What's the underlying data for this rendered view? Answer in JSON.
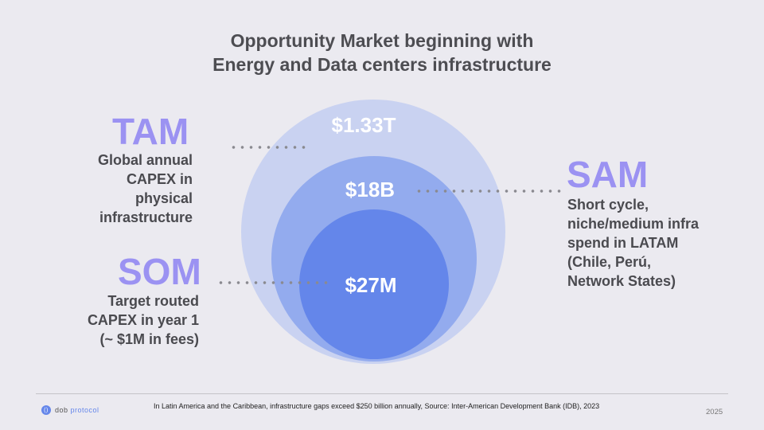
{
  "title": {
    "line1": "Opportunity Market beginning with",
    "line2": "Energy and Data centers infrastructure"
  },
  "circles": {
    "tam_value": "$1.33T",
    "sam_value": "$18B",
    "som_value": "$27M"
  },
  "tam": {
    "label": "TAM",
    "desc": [
      "Global annual",
      "CAPEX in",
      "physical",
      "infrastructure"
    ]
  },
  "sam": {
    "label": "SAM",
    "desc": [
      "Short cycle,",
      "niche/medium infra",
      "spend in LATAM",
      "(Chile, Perú,",
      "Network States)"
    ]
  },
  "som": {
    "label": "SOM",
    "desc": [
      "Target routed",
      "CAPEX in year 1",
      "(~ $1M in fees)"
    ]
  },
  "footer": {
    "logo_dob": "dob",
    "logo_protocol": "protocol",
    "note": "In Latin America and the Caribbean, infrastructure gaps exceed $250 billion annually, Source: Inter-American Development Bank (IDB), 2023",
    "year": "2025"
  },
  "colors": {
    "tam_circle": "#c9d2f1",
    "sam_circle": "#93abee",
    "som_circle": "#6486ea",
    "label_accent": "#9b92f2",
    "background": "#ebeaf0"
  }
}
